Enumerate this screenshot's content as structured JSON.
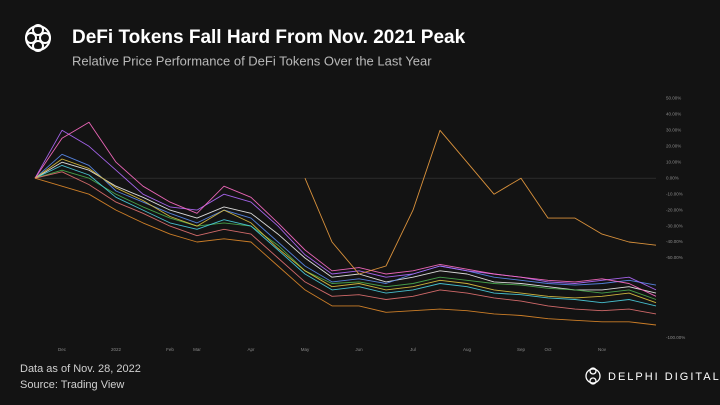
{
  "header": {
    "title": "DeFi Tokens Fall Hard From Nov. 2021 Peak",
    "subtitle": "Relative Price Performance of DeFi Tokens Over the Last Year"
  },
  "footer": {
    "note": "Data as of Nov. 28, 2022",
    "source": "Source: Trading View",
    "brand": "DELPHI DIGITAL"
  },
  "chart_data": {
    "type": "line",
    "categories": [
      null,
      "Dec",
      null,
      "2022",
      null,
      "Feb",
      "Mar",
      null,
      "Apr",
      null,
      "May",
      null,
      "Jun",
      null,
      "Jul",
      null,
      "Aug",
      null,
      "Sep",
      "Oct",
      null,
      "Nov",
      null,
      null
    ],
    "ylim": [
      -102,
      54
    ],
    "yticks": [
      {
        "value": 50,
        "label": "50.00%"
      },
      {
        "value": 40,
        "label": "40.00%"
      },
      {
        "value": 30,
        "label": "30.00%"
      },
      {
        "value": 20,
        "label": "20.00%"
      },
      {
        "value": 10,
        "label": "10.00%"
      },
      {
        "value": 0,
        "label": "0.00%"
      },
      {
        "value": -10,
        "label": "-10.00%"
      },
      {
        "value": -20,
        "label": "-20.00%"
      },
      {
        "value": -30,
        "label": "-30.00%"
      },
      {
        "value": -40,
        "label": "-40.00%"
      },
      {
        "value": -50,
        "label": "-50.00%"
      },
      {
        "value": -100,
        "label": "-100.00%"
      }
    ],
    "grid": false,
    "series": [
      {
        "color": "#f0f0f0",
        "values": [
          0,
          10,
          5,
          -5,
          -12,
          -20,
          -25,
          -18,
          -22,
          -35,
          -50,
          -62,
          -60,
          -65,
          -62,
          -58,
          -60,
          -65,
          -66,
          -68,
          -70,
          -70,
          -68,
          -72
        ]
      },
      {
        "color": "#5b8def",
        "values": [
          0,
          15,
          8,
          -8,
          -15,
          -22,
          -28,
          -20,
          -25,
          -40,
          -55,
          -65,
          -63,
          -66,
          -60,
          -55,
          -58,
          -62,
          -64,
          -66,
          -67,
          -66,
          -64,
          -67
        ]
      },
      {
        "color": "#b36bff",
        "values": [
          0,
          30,
          20,
          5,
          -10,
          -18,
          -20,
          -10,
          -15,
          -30,
          -48,
          -60,
          -58,
          -62,
          -60,
          -55,
          -58,
          -60,
          -62,
          -65,
          -66,
          -64,
          -62,
          -70
        ]
      },
      {
        "color": "#ff6ec7",
        "values": [
          0,
          25,
          35,
          10,
          -5,
          -15,
          -22,
          -5,
          -12,
          -28,
          -45,
          -58,
          -56,
          -60,
          -58,
          -54,
          -57,
          -60,
          -62,
          -64,
          -65,
          -63,
          -66,
          -74
        ]
      },
      {
        "color": "#4caf50",
        "values": [
          0,
          5,
          0,
          -10,
          -18,
          -25,
          -30,
          -28,
          -30,
          -42,
          -58,
          -66,
          -65,
          -68,
          -66,
          -62,
          -64,
          -66,
          -67,
          -69,
          -70,
          -72,
          -70,
          -76
        ]
      },
      {
        "color": "#4dd0e1",
        "values": [
          0,
          8,
          2,
          -12,
          -20,
          -28,
          -32,
          -26,
          -30,
          -45,
          -60,
          -70,
          -68,
          -72,
          -70,
          -66,
          -68,
          -72,
          -73,
          -75,
          -76,
          -78,
          -76,
          -80
        ]
      },
      {
        "color": "#e0c341",
        "values": [
          0,
          12,
          6,
          -6,
          -14,
          -24,
          -30,
          -20,
          -28,
          -44,
          -58,
          -68,
          -66,
          -70,
          -68,
          -64,
          -66,
          -70,
          -72,
          -74,
          -75,
          -74,
          -72,
          -78
        ]
      },
      {
        "color": "#e57373",
        "values": [
          0,
          4,
          -4,
          -15,
          -22,
          -30,
          -36,
          -32,
          -35,
          -50,
          -65,
          -74,
          -73,
          -76,
          -74,
          -70,
          -72,
          -75,
          -77,
          -80,
          -82,
          -83,
          -82,
          -85
        ]
      },
      {
        "color": "#e08a2a",
        "values": [
          0,
          -5,
          -10,
          -20,
          -28,
          -35,
          -40,
          -38,
          -40,
          -55,
          -70,
          -80,
          -80,
          -84,
          -83,
          -82,
          -83,
          -85,
          -86,
          -88,
          -89,
          -90,
          -90,
          -92
        ]
      },
      {
        "color": "#f0a040",
        "values": [
          null,
          null,
          null,
          null,
          null,
          null,
          null,
          null,
          null,
          null,
          0,
          -40,
          -60,
          -55,
          -20,
          30,
          10,
          -10,
          0,
          -25,
          -25,
          -35,
          -40,
          -42
        ]
      }
    ]
  }
}
